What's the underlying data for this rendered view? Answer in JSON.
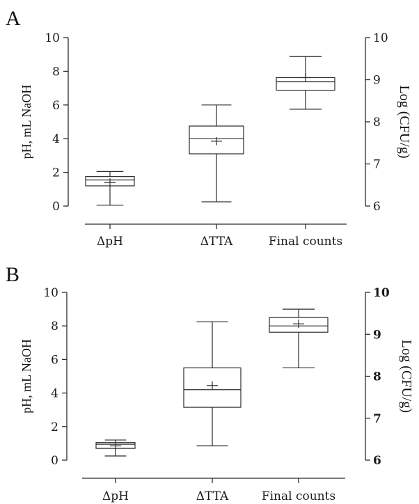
{
  "chart_data": [
    {
      "type": "box",
      "panel": "A",
      "categories": [
        "ΔpH",
        "ΔTTA",
        "Final counts"
      ],
      "ylabel_left": "pH, mL NaOH",
      "ylabel_right": "Log (CFU/g)",
      "ylim_left": [
        0,
        10
      ],
      "ylim_right": [
        6,
        10
      ],
      "yticks_left": [
        "0",
        "2",
        "4",
        "6",
        "8",
        "10"
      ],
      "yticks_right": [
        "6",
        "7",
        "8",
        "9",
        "10"
      ],
      "grid": false,
      "boxes": [
        {
          "category": "ΔpH",
          "axis": "left",
          "min": 0.05,
          "q1": 1.2,
          "median": 1.55,
          "q3": 1.75,
          "max": 2.05,
          "mean": 1.4
        },
        {
          "category": "ΔTTA",
          "axis": "left",
          "min": 0.25,
          "q1": 3.1,
          "median": 4.0,
          "q3": 4.75,
          "max": 6.0,
          "mean": 3.85
        },
        {
          "category": "Final counts",
          "axis": "right",
          "min": 8.3,
          "q1": 8.75,
          "median": 8.95,
          "q3": 9.05,
          "max": 9.55,
          "mean": 9.05
        }
      ]
    },
    {
      "type": "box",
      "panel": "B",
      "categories": [
        "ΔpH",
        "ΔTTA",
        "Final counts"
      ],
      "ylabel_left": "pH, mL NaOH",
      "ylabel_right": "Log (CFU/g)",
      "ylim_left": [
        0,
        10
      ],
      "ylim_right": [
        6,
        10
      ],
      "yticks_left": [
        "0",
        "2",
        "4",
        "6",
        "8",
        "10"
      ],
      "yticks_right": [
        "6",
        "7",
        "8",
        "9",
        "10"
      ],
      "grid": false,
      "boxes": [
        {
          "category": "ΔpH",
          "axis": "left",
          "min": 0.25,
          "q1": 0.7,
          "median": 0.95,
          "q3": 1.05,
          "max": 1.2,
          "mean": 0.85
        },
        {
          "category": "ΔTTA",
          "axis": "left",
          "min": 0.85,
          "q1": 3.15,
          "median": 4.2,
          "q3": 5.5,
          "max": 8.25,
          "mean": 4.45
        },
        {
          "category": "Final counts",
          "axis": "right",
          "min": 8.2,
          "q1": 9.05,
          "median": 9.2,
          "q3": 9.4,
          "max": 9.6,
          "mean": 9.25
        }
      ]
    }
  ]
}
